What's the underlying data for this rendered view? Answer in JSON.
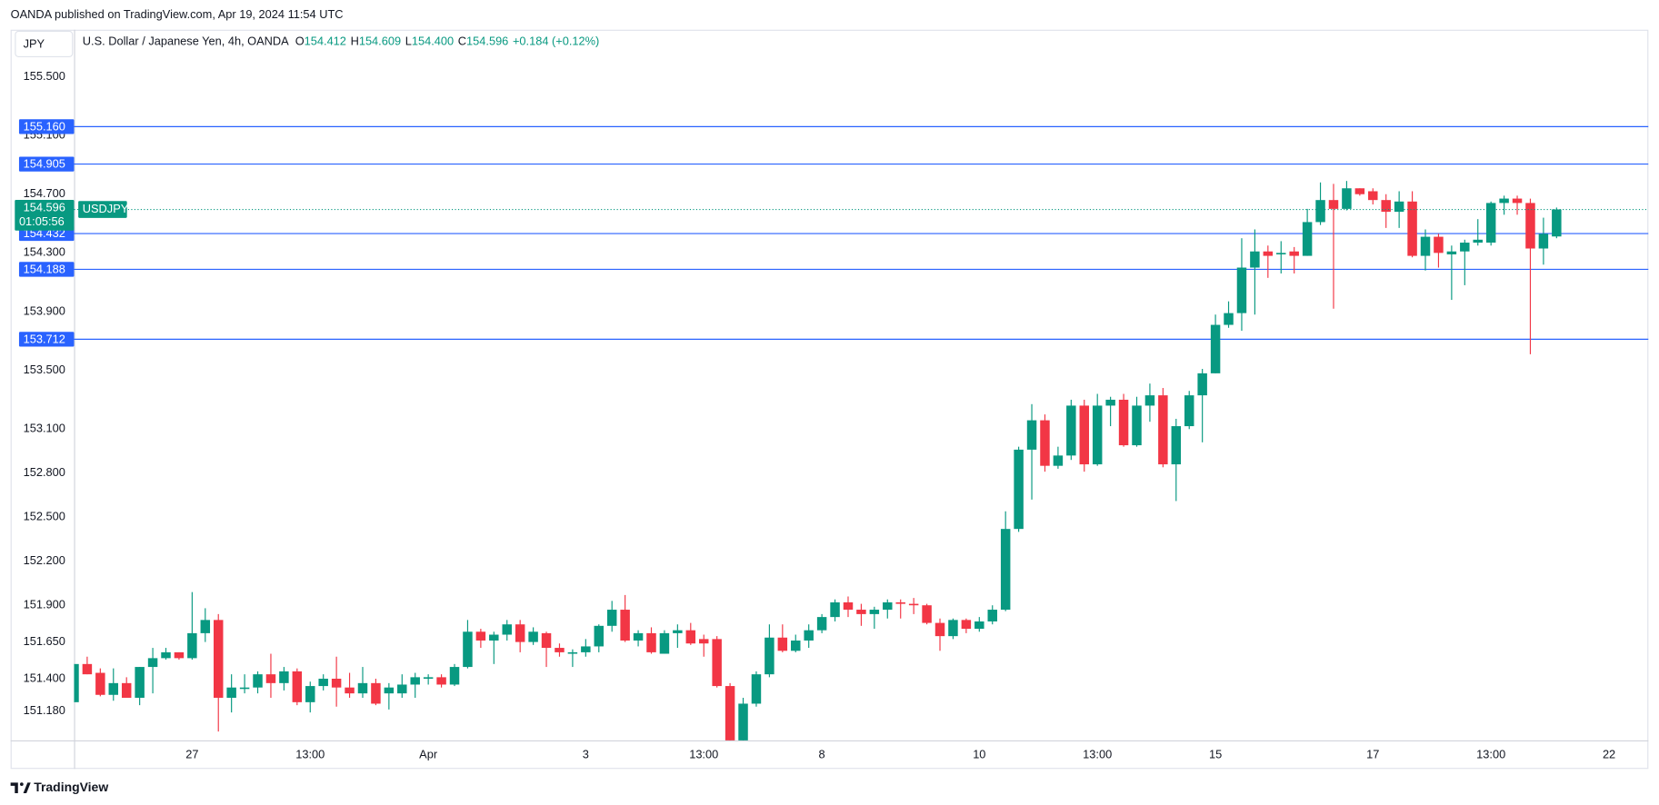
{
  "publish_note": "OANDA published on TradingView.com, Apr 19, 2024 11:54 UTC",
  "brand": "TradingView",
  "chart_data": {
    "type": "candlestick",
    "title": "U.S. Dollar / Japanese Yen, 4h, OANDA",
    "currency": "JPY",
    "symbol": "USDJPY",
    "countdown": "01:05:56",
    "ohlc_legend": [
      {
        "name": "O",
        "label": "154.412"
      },
      {
        "name": "H",
        "label": "154.609"
      },
      {
        "name": "L",
        "label": "154.400"
      },
      {
        "name": "C",
        "label": "154.596"
      }
    ],
    "change_label": "+0.184 (+0.12%)",
    "up_color": "#089981",
    "down_color": "#f23645",
    "level_color": "#2962ff",
    "grid": false,
    "last_price": 154.596,
    "levels": [
      {
        "value": 155.16,
        "label": "155.160"
      },
      {
        "value": 154.905,
        "label": "154.905"
      },
      {
        "value": 154.432,
        "label": "154.432"
      },
      {
        "value": 154.188,
        "label": "154.188"
      },
      {
        "value": 153.712,
        "label": "153.712"
      }
    ],
    "ylim": [
      150.98,
      155.82
    ],
    "yticks": [
      {
        "value": 155.5,
        "label": "155.500"
      },
      {
        "value": 155.1,
        "label": "155.100"
      },
      {
        "value": 154.7,
        "label": "154.700"
      },
      {
        "value": 154.3,
        "label": "154.300"
      },
      {
        "value": 153.9,
        "label": "153.900"
      },
      {
        "value": 153.5,
        "label": "153.500"
      },
      {
        "value": 153.1,
        "label": "153.100"
      },
      {
        "value": 152.8,
        "label": "152.800"
      },
      {
        "value": 152.5,
        "label": "152.500"
      },
      {
        "value": 152.2,
        "label": "152.200"
      },
      {
        "value": 151.9,
        "label": "151.900"
      },
      {
        "value": 151.65,
        "label": "151.650"
      },
      {
        "value": 151.4,
        "label": "151.400"
      },
      {
        "value": 151.18,
        "label": "151.180"
      }
    ],
    "xlim": [
      0,
      120
    ],
    "xticks": [
      {
        "value": 9,
        "label": "27"
      },
      {
        "value": 18,
        "label": "13:00"
      },
      {
        "value": 27,
        "label": "Apr"
      },
      {
        "value": 39,
        "label": "3"
      },
      {
        "value": 48,
        "label": "13:00"
      },
      {
        "value": 57,
        "label": "8"
      },
      {
        "value": 69,
        "label": "10"
      },
      {
        "value": 78,
        "label": "13:00"
      },
      {
        "value": 87,
        "label": "15"
      },
      {
        "value": 99,
        "label": "17"
      },
      {
        "value": 108,
        "label": "13:00"
      },
      {
        "value": 117,
        "label": "22"
      }
    ],
    "candles": {
      "open": [
        151.24,
        151.5,
        151.44,
        151.29,
        151.37,
        151.27,
        151.48,
        151.54,
        151.58,
        151.54,
        151.71,
        151.8,
        151.27,
        151.33,
        151.34,
        151.43,
        151.37,
        151.45,
        151.24,
        151.35,
        151.4,
        151.34,
        151.3,
        151.37,
        151.3,
        151.3,
        151.36,
        151.4,
        151.41,
        151.36,
        151.48,
        151.72,
        151.66,
        151.7,
        151.77,
        151.65,
        151.71,
        151.61,
        151.57,
        151.58,
        151.62,
        151.76,
        151.87,
        151.66,
        151.71,
        151.57,
        151.71,
        151.73,
        151.67,
        151.67,
        151.35,
        150.96,
        151.23,
        151.43,
        151.68,
        151.59,
        151.66,
        151.73,
        151.82,
        151.92,
        151.87,
        151.84,
        151.87,
        151.92,
        151.91,
        151.9,
        151.78,
        151.69,
        151.8,
        151.74,
        151.79,
        151.87,
        152.42,
        152.96,
        153.16,
        152.85,
        152.92,
        153.26,
        152.86,
        153.26,
        153.3,
        152.99,
        153.26,
        153.33,
        152.86,
        153.12,
        153.33,
        153.48,
        153.81,
        153.89,
        154.2,
        154.31,
        154.29,
        154.31,
        154.28,
        154.51,
        154.66,
        154.6,
        154.74,
        154.72,
        154.66,
        154.58,
        154.65,
        154.28,
        154.41,
        154.29,
        154.31,
        154.37,
        154.37,
        154.64,
        154.67,
        154.64,
        154.33,
        154.412
      ],
      "high": [
        151.5,
        151.55,
        151.47,
        151.47,
        151.41,
        151.48,
        151.61,
        151.61,
        151.58,
        151.99,
        151.88,
        151.84,
        151.43,
        151.43,
        151.45,
        151.57,
        151.48,
        151.47,
        151.38,
        151.43,
        151.55,
        151.44,
        151.48,
        151.4,
        151.37,
        151.43,
        151.44,
        151.43,
        151.43,
        151.5,
        151.8,
        151.74,
        151.72,
        151.8,
        151.8,
        151.75,
        151.72,
        151.64,
        151.6,
        151.67,
        151.77,
        151.93,
        151.97,
        151.73,
        151.75,
        151.73,
        151.77,
        151.78,
        151.7,
        151.69,
        151.37,
        151.27,
        151.45,
        151.77,
        151.77,
        151.7,
        151.77,
        151.84,
        151.94,
        151.96,
        151.91,
        151.89,
        151.94,
        151.94,
        151.95,
        151.91,
        151.81,
        151.81,
        151.81,
        151.82,
        151.9,
        152.54,
        152.98,
        153.27,
        153.2,
        152.98,
        153.3,
        153.3,
        153.34,
        153.32,
        153.34,
        153.32,
        153.41,
        153.38,
        153.17,
        153.36,
        153.51,
        153.88,
        153.97,
        154.4,
        154.46,
        154.35,
        154.38,
        154.34,
        154.6,
        154.78,
        154.77,
        154.79,
        154.74,
        154.74,
        154.7,
        154.72,
        154.72,
        154.46,
        154.43,
        154.35,
        154.39,
        154.53,
        154.65,
        154.69,
        154.69,
        154.67,
        154.54,
        154.609
      ],
      "low": [
        151.24,
        151.43,
        151.28,
        151.25,
        151.27,
        151.22,
        151.3,
        151.53,
        151.53,
        151.53,
        151.65,
        151.04,
        151.17,
        151.3,
        151.3,
        151.27,
        151.32,
        151.22,
        151.17,
        151.32,
        151.21,
        151.27,
        151.27,
        151.22,
        151.19,
        151.27,
        151.27,
        151.36,
        151.34,
        151.35,
        151.47,
        151.61,
        151.5,
        151.66,
        151.58,
        151.63,
        151.48,
        151.55,
        151.48,
        151.55,
        151.58,
        151.72,
        151.65,
        151.62,
        151.57,
        151.57,
        151.61,
        151.63,
        151.55,
        151.34,
        150.96,
        150.96,
        151.21,
        151.41,
        151.58,
        151.58,
        151.61,
        151.71,
        151.79,
        151.82,
        151.76,
        151.74,
        151.81,
        151.81,
        151.84,
        151.77,
        151.59,
        151.67,
        151.71,
        151.72,
        151.77,
        151.86,
        152.4,
        152.62,
        152.81,
        152.83,
        152.89,
        152.81,
        152.85,
        153.12,
        152.98,
        152.98,
        153.15,
        152.84,
        152.61,
        153.1,
        153.01,
        153.48,
        153.79,
        153.77,
        153.88,
        154.13,
        154.16,
        154.16,
        154.28,
        154.49,
        153.92,
        154.59,
        154.69,
        154.63,
        154.47,
        154.47,
        154.27,
        154.18,
        154.2,
        153.98,
        154.08,
        154.35,
        154.35,
        154.56,
        154.56,
        153.61,
        154.22,
        154.4
      ],
      "close": [
        151.5,
        151.43,
        151.29,
        151.37,
        151.27,
        151.48,
        151.54,
        151.58,
        151.54,
        151.71,
        151.8,
        151.27,
        151.34,
        151.34,
        151.43,
        151.37,
        151.45,
        151.24,
        151.35,
        151.4,
        151.34,
        151.3,
        151.37,
        151.23,
        151.34,
        151.36,
        151.41,
        151.41,
        151.36,
        151.48,
        151.72,
        151.66,
        151.7,
        151.77,
        151.65,
        151.72,
        151.61,
        151.58,
        151.58,
        151.62,
        151.76,
        151.87,
        151.66,
        151.71,
        151.58,
        151.71,
        151.73,
        151.64,
        151.64,
        151.35,
        150.96,
        151.23,
        151.43,
        151.68,
        151.59,
        151.66,
        151.73,
        151.82,
        151.92,
        151.87,
        151.84,
        151.87,
        151.92,
        151.91,
        151.9,
        151.78,
        151.69,
        151.8,
        151.74,
        151.79,
        151.87,
        152.42,
        152.96,
        153.16,
        152.85,
        152.92,
        153.26,
        152.86,
        153.26,
        153.3,
        152.99,
        153.26,
        153.33,
        152.86,
        153.12,
        153.33,
        153.48,
        153.81,
        153.89,
        154.2,
        154.31,
        154.28,
        154.3,
        154.28,
        154.51,
        154.66,
        154.6,
        154.74,
        154.7,
        154.66,
        154.58,
        154.65,
        154.28,
        154.41,
        154.3,
        154.31,
        154.37,
        154.39,
        154.64,
        154.67,
        154.64,
        154.33,
        154.43,
        154.596
      ]
    }
  }
}
